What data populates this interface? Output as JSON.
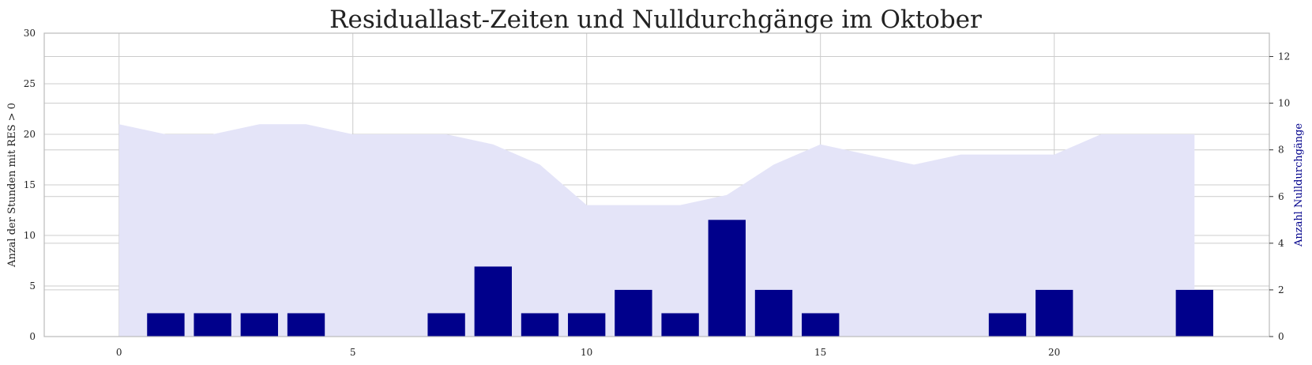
{
  "chart_data": {
    "type": "bar",
    "title": "Residuallast-Zeiten und Nulldurchgänge im Oktober",
    "ylabel": "Anzal der Stunden mit RES > 0",
    "y2label": "Anzahl Nulldurchgänge",
    "xlim": [
      -1.6,
      24.6
    ],
    "ylim": [
      0,
      30
    ],
    "y2lim": [
      0,
      13
    ],
    "xticks": [
      0,
      5,
      10,
      15,
      20
    ],
    "yticks": [
      0,
      5,
      10,
      15,
      20,
      25,
      30
    ],
    "y2ticks": [
      0,
      2,
      4,
      6,
      8,
      10,
      12
    ],
    "grid": true,
    "series": [
      {
        "kind": "area",
        "axis": "left",
        "color": "#e4e4f8",
        "x": [
          0,
          1,
          2,
          3,
          4,
          5,
          6,
          7,
          8,
          9,
          10,
          11,
          12,
          13,
          14,
          15,
          16,
          17,
          18,
          19,
          20,
          21,
          22,
          23
        ],
        "values": [
          21,
          20,
          20,
          21,
          21,
          20,
          20,
          20,
          19,
          17,
          13,
          13,
          13,
          14,
          17,
          19,
          18,
          17,
          18,
          18,
          18,
          20,
          20,
          20
        ]
      },
      {
        "kind": "bar",
        "axis": "right",
        "color": "#00008b",
        "x": [
          1,
          2,
          3,
          4,
          7,
          8,
          9,
          10,
          11,
          12,
          13,
          14,
          15,
          19,
          20,
          23
        ],
        "values": [
          1,
          1,
          1,
          1,
          1,
          3,
          1,
          1,
          2,
          1,
          5,
          2,
          1,
          1,
          2,
          2
        ]
      }
    ],
    "y2label_color": "#00008b"
  }
}
